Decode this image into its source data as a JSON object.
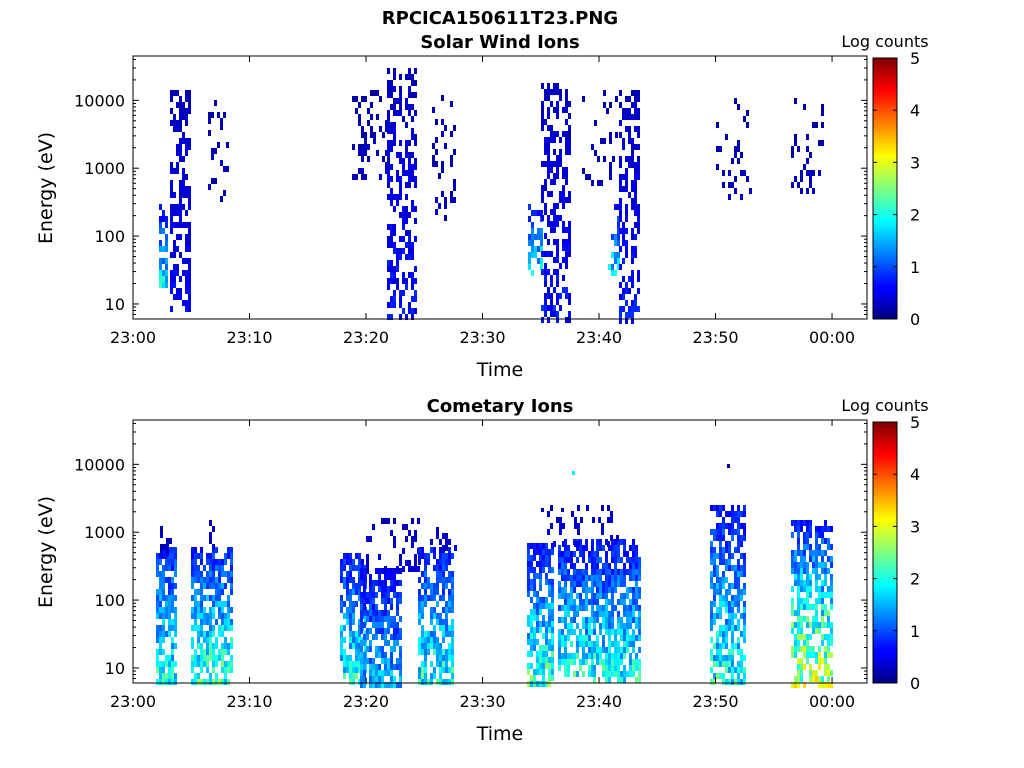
{
  "figure": {
    "title": "RPCICA150611T23.PNG"
  },
  "chart_data": [
    {
      "type": "heatmap",
      "title": "Solar Wind Ions",
      "xlabel": "Time",
      "ylabel": "Energy (eV)",
      "x_ticks": [
        "23:00",
        "23:10",
        "23:20",
        "23:30",
        "23:40",
        "23:50",
        "00:00"
      ],
      "x_range_minutes": [
        0,
        63
      ],
      "y_scale": "log",
      "y_ticks": [
        "10",
        "100",
        "1000",
        "10000"
      ],
      "ylim": [
        6,
        45000
      ],
      "colorbar": {
        "label": "Log counts",
        "ticks": [
          "0",
          "1",
          "2",
          "3",
          "4",
          "5"
        ],
        "range": [
          0,
          5
        ],
        "colormap": "jet"
      },
      "bursts": [
        {
          "t0": 2.2,
          "t1": 3.0,
          "e_low": 18,
          "e_high": 300,
          "level_low": 1.8,
          "level_high": 0.6,
          "density": 0.6
        },
        {
          "t0": 3.2,
          "t1": 5.0,
          "e_low": 8,
          "e_high": 14000,
          "level_low": 0.6,
          "level_high": 0.3,
          "density": 0.5
        },
        {
          "t0": 6.4,
          "t1": 8.2,
          "e_low": 350,
          "e_high": 10000,
          "level_low": 0.3,
          "level_high": 0.2,
          "density": 0.22
        },
        {
          "t0": 18.8,
          "t1": 21.8,
          "e_low": 700,
          "e_high": 14000,
          "level_low": 0.3,
          "level_high": 0.2,
          "density": 0.22
        },
        {
          "t0": 21.8,
          "t1": 24.2,
          "e_low": 6,
          "e_high": 30000,
          "level_low": 0.7,
          "level_high": 0.3,
          "density": 0.5
        },
        {
          "t0": 25.7,
          "t1": 27.6,
          "e_low": 200,
          "e_high": 12000,
          "level_low": 0.3,
          "level_high": 0.2,
          "density": 0.2
        },
        {
          "t0": 33.9,
          "t1": 35.0,
          "e_low": 30,
          "e_high": 300,
          "level_low": 1.8,
          "level_high": 0.7,
          "density": 0.55
        },
        {
          "t0": 35.0,
          "t1": 37.5,
          "e_low": 6,
          "e_high": 18000,
          "level_low": 0.7,
          "level_high": 0.3,
          "density": 0.5
        },
        {
          "t0": 38.5,
          "t1": 41.5,
          "e_low": 600,
          "e_high": 14000,
          "level_low": 0.3,
          "level_high": 0.2,
          "density": 0.2
        },
        {
          "t0": 40.8,
          "t1": 41.7,
          "e_low": 30,
          "e_high": 300,
          "level_low": 1.7,
          "level_high": 0.7,
          "density": 0.55
        },
        {
          "t0": 41.7,
          "t1": 43.5,
          "e_low": 6,
          "e_high": 14000,
          "level_low": 0.7,
          "level_high": 0.3,
          "density": 0.5
        },
        {
          "t0": 50.0,
          "t1": 53.0,
          "e_low": 400,
          "e_high": 11000,
          "level_low": 0.3,
          "level_high": 0.2,
          "density": 0.18
        },
        {
          "t0": 56.5,
          "t1": 59.5,
          "e_low": 500,
          "e_high": 11000,
          "level_low": 0.3,
          "level_high": 0.2,
          "density": 0.2
        }
      ]
    },
    {
      "type": "heatmap",
      "title": "Cometary Ions",
      "xlabel": "Time",
      "ylabel": "Energy (eV)",
      "x_ticks": [
        "23:00",
        "23:10",
        "23:20",
        "23:30",
        "23:40",
        "23:50",
        "00:00"
      ],
      "x_range_minutes": [
        0,
        63
      ],
      "y_scale": "log",
      "y_ticks": [
        "10",
        "100",
        "1000",
        "10000"
      ],
      "ylim": [
        6,
        45000
      ],
      "colorbar": {
        "label": "Log counts",
        "ticks": [
          "0",
          "1",
          "2",
          "3",
          "4",
          "5"
        ],
        "range": [
          0,
          5
        ],
        "colormap": "jet"
      },
      "bursts": [
        {
          "t0": 2.0,
          "t1": 3.6,
          "e_low": 6,
          "e_high": 600,
          "level_low": 2.0,
          "level_high": 0.8,
          "density": 0.8
        },
        {
          "t0": 2.3,
          "t1": 3.2,
          "e_low": 500,
          "e_high": 1500,
          "level_low": 0.4,
          "level_high": 0.3,
          "density": 0.4
        },
        {
          "t0": 5.0,
          "t1": 8.4,
          "e_low": 6,
          "e_high": 600,
          "level_low": 2.2,
          "level_high": 0.8,
          "density": 0.75
        },
        {
          "t0": 6.5,
          "t1": 7.0,
          "e_low": 600,
          "e_high": 1500,
          "level_low": 0.4,
          "level_high": 0.3,
          "density": 0.4
        },
        {
          "t0": 17.8,
          "t1": 20.0,
          "e_low": 6,
          "e_high": 500,
          "level_low": 2.0,
          "level_high": 0.7,
          "density": 0.7
        },
        {
          "t0": 19.5,
          "t1": 23.0,
          "e_low": 6,
          "e_high": 300,
          "level_low": 1.5,
          "level_high": 0.6,
          "density": 0.7
        },
        {
          "t0": 20.0,
          "t1": 24.5,
          "e_low": 300,
          "e_high": 1600,
          "level_low": 0.4,
          "level_high": 0.3,
          "density": 0.25
        },
        {
          "t0": 24.5,
          "t1": 27.5,
          "e_low": 6,
          "e_high": 600,
          "level_low": 2.0,
          "level_high": 0.7,
          "density": 0.7
        },
        {
          "t0": 25.5,
          "t1": 27.8,
          "e_low": 600,
          "e_high": 1200,
          "level_low": 0.4,
          "level_high": 0.3,
          "density": 0.3
        },
        {
          "t0": 33.8,
          "t1": 36.0,
          "e_low": 6,
          "e_high": 700,
          "level_low": 2.2,
          "level_high": 0.7,
          "density": 0.75
        },
        {
          "t0": 36.5,
          "t1": 39.5,
          "e_low": 8,
          "e_high": 800,
          "level_low": 2.0,
          "level_high": 0.7,
          "density": 0.7
        },
        {
          "t0": 39.5,
          "t1": 43.5,
          "e_low": 6,
          "e_high": 800,
          "level_low": 2.0,
          "level_high": 0.7,
          "density": 0.75
        },
        {
          "t0": 35.5,
          "t1": 41.5,
          "e_low": 700,
          "e_high": 2500,
          "level_low": 0.4,
          "level_high": 0.3,
          "density": 0.2
        },
        {
          "t0": 49.5,
          "t1": 52.5,
          "e_low": 6,
          "e_high": 2500,
          "level_low": 2.0,
          "level_high": 0.7,
          "density": 0.7
        },
        {
          "t0": 56.5,
          "t1": 60.0,
          "e_low": 6,
          "e_high": 1500,
          "level_low": 2.8,
          "level_high": 0.8,
          "density": 0.7
        }
      ],
      "specks": [
        {
          "t": 37.7,
          "e": 8000,
          "level": 1.8
        },
        {
          "t": 51.0,
          "e": 10000,
          "level": 0.2
        },
        {
          "t": 36.7,
          "e": 2300,
          "level": 0.3
        },
        {
          "t": 35.0,
          "e": 2300,
          "level": 0.3
        }
      ]
    }
  ]
}
